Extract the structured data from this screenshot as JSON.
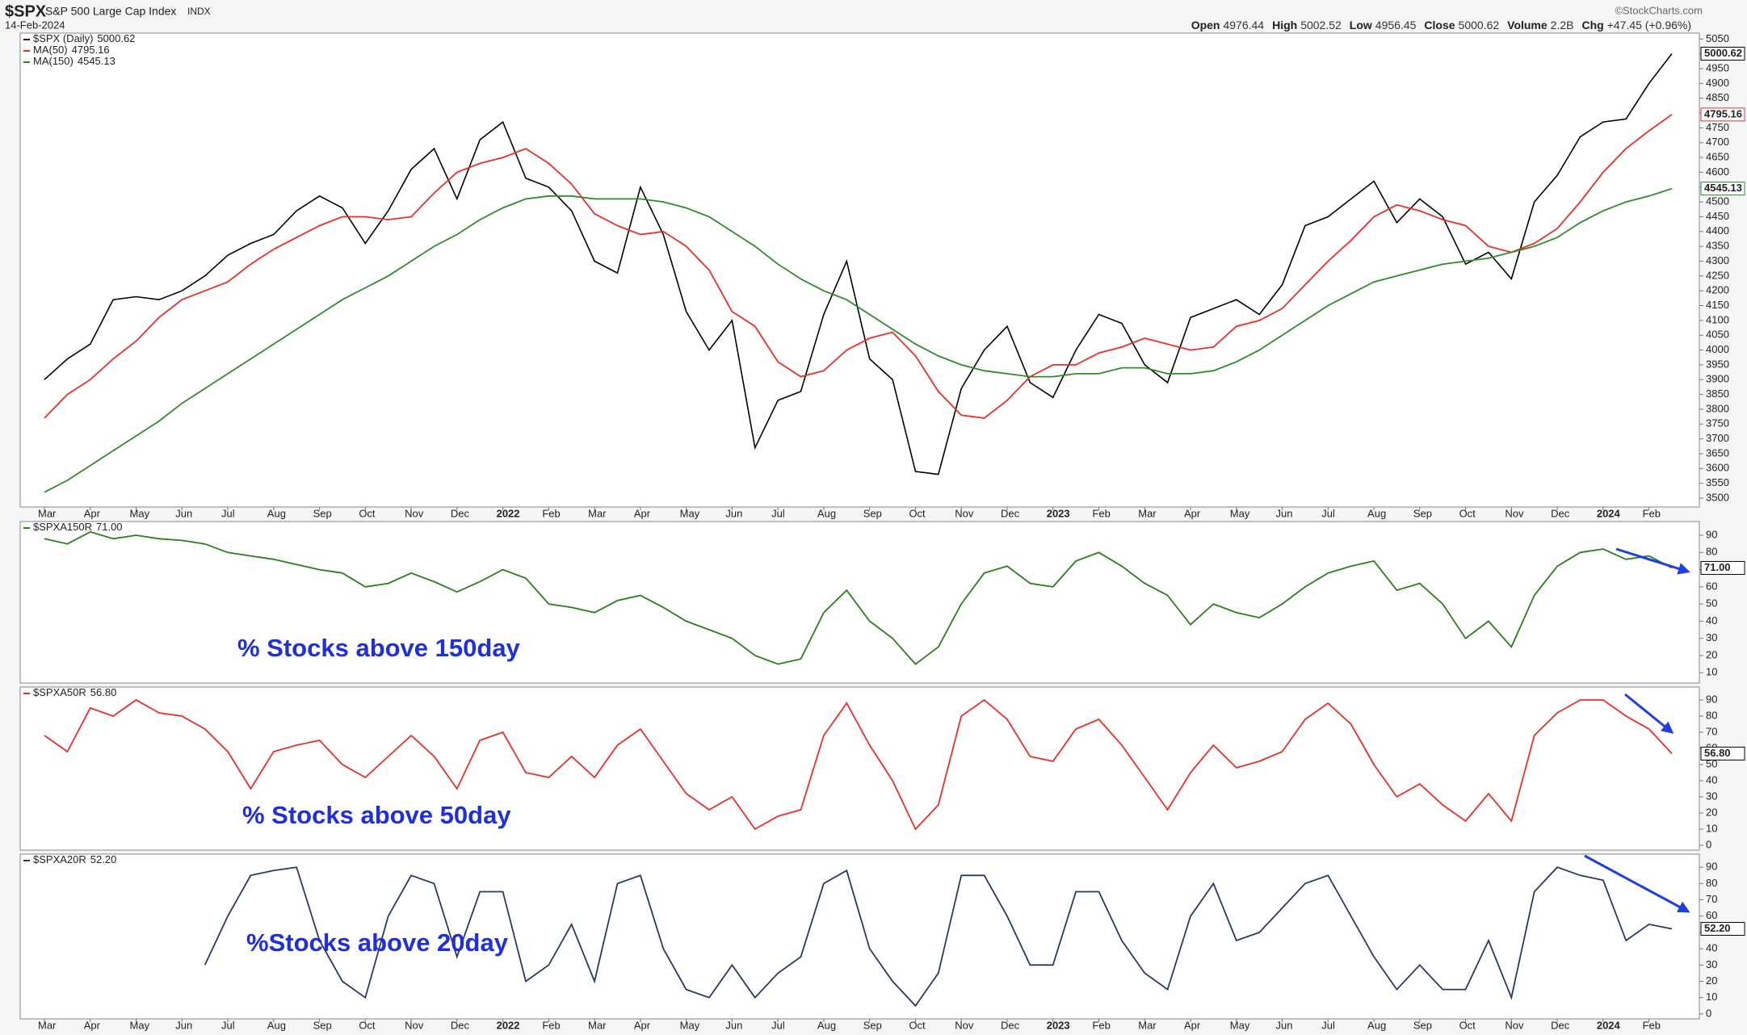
{
  "header": {
    "symbol": "$SPX",
    "name": "S&P 500 Large Cap Index",
    "exchange": "INDX",
    "date": "14-Feb-2024",
    "copyright": "©StockCharts.com",
    "ohlc": [
      {
        "label": "Open",
        "value": "4976.44"
      },
      {
        "label": "High",
        "value": "5002.52"
      },
      {
        "label": "Low",
        "value": "4956.45"
      },
      {
        "label": "Close",
        "value": "5000.62"
      },
      {
        "label": "Volume",
        "value": "2.2B"
      },
      {
        "label": "Chg",
        "value": "+47.45 (+0.96%)"
      }
    ]
  },
  "chart_data": [
    {
      "type": "line",
      "categories": [
        "Mar",
        null,
        "Apr",
        null,
        "May",
        null,
        "Jun",
        null,
        "Jul",
        null,
        "Aug",
        null,
        "Sep",
        null,
        "Oct",
        null,
        "Nov",
        null,
        "Dec",
        null,
        "2022",
        null,
        "Feb",
        null,
        "Mar",
        null,
        "Apr",
        null,
        "May",
        null,
        "Jun",
        null,
        "Jul",
        null,
        "Aug",
        null,
        "Sep",
        null,
        "Oct",
        null,
        "Nov",
        null,
        "Dec",
        null,
        "2023",
        null,
        "Feb",
        null,
        "Mar",
        null,
        "Apr",
        null,
        "May",
        null,
        "Jun",
        null,
        "Jul",
        null,
        "Aug",
        null,
        "Sep",
        null,
        "Oct",
        null,
        "Nov",
        null,
        "Dec",
        null,
        "2024",
        null,
        "Feb",
        null
      ],
      "ylim": [
        3470,
        5070
      ],
      "yticks": [
        3500,
        3550,
        3600,
        3650,
        3700,
        3750,
        3800,
        3850,
        3900,
        3950,
        4000,
        4050,
        4100,
        4150,
        4200,
        4250,
        4300,
        4350,
        4400,
        4450,
        4500,
        4550,
        4600,
        4650,
        4700,
        4750,
        4800,
        4850,
        4900,
        4950,
        5000,
        5050
      ],
      "series": [
        {
          "name": "$SPX (Daily)",
          "color": "#000000",
          "values": [
            3900,
            3970,
            4020,
            4170,
            4180,
            4170,
            4200,
            4250,
            4320,
            4360,
            4390,
            4470,
            4520,
            4480,
            4360,
            4470,
            4610,
            4680,
            4510,
            4710,
            4770,
            4580,
            4550,
            4470,
            4300,
            4260,
            4550,
            4390,
            4130,
            4000,
            4100,
            3670,
            3830,
            3860,
            4120,
            4300,
            3970,
            3900,
            3590,
            3580,
            3870,
            4000,
            4080,
            3890,
            3840,
            4000,
            4120,
            4090,
            3950,
            3890,
            4110,
            4140,
            4170,
            4120,
            4220,
            4420,
            4450,
            4510,
            4570,
            4430,
            4510,
            4450,
            4290,
            4330,
            4240,
            4500,
            4590,
            4720,
            4770,
            4780,
            4900,
            5000.62
          ]
        },
        {
          "name": "MA(50)",
          "color": "#e8302a",
          "values": [
            3770,
            3850,
            3900,
            3970,
            4030,
            4110,
            4170,
            4200,
            4230,
            4290,
            4340,
            4380,
            4420,
            4450,
            4450,
            4440,
            4450,
            4530,
            4600,
            4630,
            4650,
            4680,
            4630,
            4560,
            4460,
            4420,
            4390,
            4400,
            4350,
            4270,
            4130,
            4080,
            3960,
            3910,
            3930,
            4000,
            4040,
            4060,
            3980,
            3860,
            3780,
            3770,
            3830,
            3910,
            3950,
            3950,
            3990,
            4010,
            4040,
            4020,
            4000,
            4010,
            4080,
            4100,
            4140,
            4220,
            4300,
            4370,
            4450,
            4490,
            4470,
            4440,
            4420,
            4350,
            4330,
            4360,
            4410,
            4500,
            4600,
            4680,
            4740,
            4795.16
          ]
        },
        {
          "name": "MA(150)",
          "color": "#2e8b2e",
          "values": [
            3520,
            3560,
            3610,
            3660,
            3710,
            3760,
            3820,
            3870,
            3920,
            3970,
            4020,
            4070,
            4120,
            4170,
            4210,
            4250,
            4300,
            4350,
            4390,
            4440,
            4480,
            4510,
            4520,
            4520,
            4510,
            4510,
            4510,
            4500,
            4480,
            4450,
            4400,
            4350,
            4290,
            4240,
            4200,
            4170,
            4120,
            4070,
            4020,
            3980,
            3950,
            3930,
            3920,
            3910,
            3910,
            3920,
            3920,
            3940,
            3940,
            3920,
            3920,
            3930,
            3960,
            4000,
            4050,
            4100,
            4150,
            4190,
            4230,
            4250,
            4270,
            4290,
            4300,
            4310,
            4330,
            4350,
            4380,
            4430,
            4470,
            4500,
            4520,
            4545.13
          ]
        }
      ]
    },
    {
      "type": "line",
      "ylim": [
        4,
        98
      ],
      "yticks": [
        10,
        20,
        30,
        40,
        50,
        60,
        70,
        80,
        90
      ],
      "annotation": "% Stocks above 150day",
      "series": [
        {
          "name": "$SPXA150R",
          "color": "#2e7d1e",
          "values": [
            88,
            85,
            92,
            88,
            90,
            88,
            87,
            85,
            80,
            78,
            76,
            73,
            70,
            68,
            60,
            62,
            68,
            63,
            57,
            63,
            70,
            65,
            50,
            48,
            45,
            52,
            55,
            48,
            40,
            35,
            30,
            20,
            15,
            18,
            45,
            58,
            40,
            30,
            15,
            25,
            50,
            68,
            72,
            62,
            60,
            75,
            80,
            72,
            62,
            55,
            38,
            50,
            45,
            42,
            50,
            60,
            68,
            72,
            75,
            58,
            62,
            50,
            30,
            40,
            25,
            55,
            72,
            80,
            82,
            76,
            78,
            71
          ],
          "value_labels": [
            null,
            null,
            null,
            null,
            null,
            null,
            null,
            null,
            null,
            null,
            null,
            null,
            null,
            null,
            null,
            null,
            null,
            null,
            null,
            null,
            null,
            null,
            null,
            null,
            null,
            null,
            null,
            null,
            null,
            null,
            null,
            null,
            null,
            null,
            null,
            null,
            null,
            null,
            null,
            null,
            null,
            null,
            null,
            null,
            null,
            null,
            null,
            null,
            null,
            null,
            null,
            null,
            null,
            null,
            null,
            null,
            null,
            null,
            null,
            null,
            null,
            null,
            null,
            null,
            null,
            null,
            null,
            null,
            null,
            null,
            null,
            "71.00"
          ]
        }
      ]
    },
    {
      "type": "line",
      "ylim": [
        -3,
        98
      ],
      "yticks": [
        0,
        10,
        20,
        30,
        40,
        50,
        60,
        70,
        80,
        90
      ],
      "annotation": "% Stocks above 50day",
      "series": [
        {
          "name": "$SPXA50R",
          "color": "#e8302a",
          "values": [
            68,
            58,
            85,
            80,
            90,
            82,
            80,
            72,
            58,
            35,
            58,
            62,
            65,
            50,
            42,
            55,
            68,
            55,
            35,
            65,
            70,
            45,
            42,
            55,
            42,
            62,
            72,
            52,
            32,
            22,
            30,
            10,
            18,
            22,
            68,
            88,
            62,
            40,
            10,
            25,
            80,
            90,
            78,
            55,
            52,
            72,
            78,
            62,
            42,
            22,
            45,
            62,
            48,
            52,
            58,
            78,
            88,
            75,
            50,
            30,
            38,
            25,
            15,
            32,
            15,
            68,
            82,
            90,
            90,
            80,
            72,
            56.8
          ],
          "value_labels": [
            null,
            null,
            null,
            null,
            null,
            null,
            null,
            null,
            null,
            null,
            null,
            null,
            null,
            null,
            null,
            null,
            null,
            null,
            null,
            null,
            null,
            null,
            null,
            null,
            null,
            null,
            null,
            null,
            null,
            null,
            null,
            null,
            null,
            null,
            null,
            null,
            null,
            null,
            null,
            null,
            null,
            null,
            null,
            null,
            null,
            null,
            null,
            null,
            null,
            null,
            null,
            null,
            null,
            null,
            null,
            null,
            null,
            null,
            null,
            null,
            null,
            null,
            null,
            null,
            null,
            null,
            null,
            null,
            null,
            null,
            null,
            "56.80"
          ]
        }
      ]
    },
    {
      "type": "line",
      "categories": [
        "Mar",
        null,
        "Apr",
        null,
        "May",
        null,
        "Jun",
        null,
        "Jul",
        null,
        "Aug",
        null,
        "Sep",
        null,
        "Oct",
        null,
        "Nov",
        null,
        "Dec",
        null,
        "2022",
        null,
        "Feb",
        null,
        "Mar",
        null,
        "Apr",
        null,
        "May",
        null,
        "Jun",
        null,
        "Jul",
        null,
        "Aug",
        null,
        "Sep",
        null,
        "Oct",
        null,
        "Nov",
        null,
        "Dec",
        null,
        "2023",
        null,
        "Feb",
        null,
        "Mar",
        null,
        "Apr",
        null,
        "May",
        null,
        "Jun",
        null,
        "Jul",
        null,
        "Aug",
        null,
        "Sep",
        null,
        "Oct",
        null,
        "Nov",
        null,
        "Dec",
        null,
        "2024",
        null,
        "Feb",
        null
      ],
      "ylim": [
        -3,
        98
      ],
      "yticks": [
        0,
        10,
        20,
        30,
        40,
        50,
        60,
        70,
        80,
        90
      ],
      "annotation": "%Stocks above 20day",
      "series": [
        {
          "name": "$SPXA20R",
          "color": "#2a3a5c",
          "values": [
            null,
            null,
            null,
            null,
            null,
            null,
            null,
            30,
            60,
            85,
            88,
            90,
            45,
            20,
            10,
            60,
            85,
            80,
            35,
            75,
            75,
            20,
            30,
            55,
            20,
            80,
            85,
            40,
            15,
            10,
            30,
            10,
            25,
            35,
            80,
            88,
            40,
            20,
            5,
            25,
            85,
            85,
            60,
            30,
            30,
            75,
            75,
            45,
            25,
            15,
            60,
            80,
            45,
            50,
            65,
            80,
            85,
            60,
            35,
            15,
            30,
            15,
            15,
            45,
            10,
            75,
            90,
            85,
            82,
            45,
            55,
            52.2
          ],
          "value_labels": [
            null,
            null,
            null,
            null,
            null,
            null,
            null,
            null,
            null,
            null,
            null,
            null,
            null,
            null,
            null,
            null,
            null,
            null,
            null,
            null,
            null,
            null,
            null,
            null,
            null,
            null,
            null,
            null,
            null,
            null,
            null,
            null,
            null,
            null,
            null,
            null,
            null,
            null,
            null,
            null,
            null,
            null,
            null,
            null,
            null,
            null,
            null,
            null,
            null,
            null,
            null,
            null,
            null,
            null,
            null,
            null,
            null,
            null,
            null,
            null,
            null,
            null,
            null,
            null,
            null,
            null,
            null,
            null,
            null,
            null,
            null,
            "52.20"
          ]
        }
      ]
    }
  ]
}
